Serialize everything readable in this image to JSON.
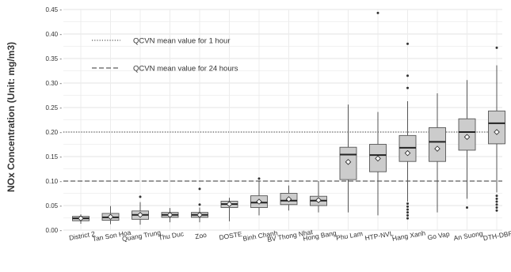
{
  "chart_data": {
    "type": "box",
    "ylabel": "NOx Concentration (Unit: mg/m3)",
    "ylim": [
      0,
      0.45
    ],
    "yticks": [
      0,
      0.05,
      0.1,
      0.15,
      0.2,
      0.25,
      0.3,
      0.35,
      0.4,
      0.45
    ],
    "ytick_labels": [
      "0.00 -",
      "0.05 -",
      "0.10 -",
      "0.15 -",
      "0.20 -",
      "0.25 -",
      "0.30 -",
      "0.35 -",
      "0.40 -",
      "0.45 -"
    ],
    "grid": true,
    "categories": [
      "District 2",
      "Tan Son Hoa",
      "Quang Trung",
      "Thu Duc",
      "Zoo",
      "DOSTE",
      "Binh Chanh",
      "BV Thong Nhat",
      "Hong Bang",
      "Phu Lam",
      "HTP-NVL",
      "Hang Xanh",
      "Go Vap",
      "An Suong",
      "DTH-DBP"
    ],
    "boxes": [
      {
        "whisker_low": 0.013,
        "q1": 0.019,
        "median": 0.024,
        "q3": 0.028,
        "whisker_high": 0.032,
        "mean": 0.024,
        "outliers": []
      },
      {
        "whisker_low": 0.012,
        "q1": 0.02,
        "median": 0.026,
        "q3": 0.034,
        "whisker_high": 0.049,
        "mean": 0.027,
        "outliers": []
      },
      {
        "whisker_low": 0.011,
        "q1": 0.022,
        "median": 0.031,
        "q3": 0.039,
        "whisker_high": 0.057,
        "mean": 0.031,
        "outliers": [
          0.068
        ]
      },
      {
        "whisker_low": 0.016,
        "q1": 0.026,
        "median": 0.031,
        "q3": 0.036,
        "whisker_high": 0.045,
        "mean": 0.031,
        "outliers": []
      },
      {
        "whisker_low": 0.016,
        "q1": 0.026,
        "median": 0.031,
        "q3": 0.036,
        "whisker_high": 0.046,
        "mean": 0.031,
        "outliers": [
          0.052,
          0.084
        ]
      },
      {
        "whisker_low": 0.018,
        "q1": 0.046,
        "median": 0.053,
        "q3": 0.059,
        "whisker_high": 0.066,
        "mean": 0.053,
        "outliers": []
      },
      {
        "whisker_low": 0.03,
        "q1": 0.046,
        "median": 0.056,
        "q3": 0.07,
        "whisker_high": 0.1,
        "mean": 0.058,
        "outliers": [
          0.105
        ]
      },
      {
        "whisker_low": 0.04,
        "q1": 0.052,
        "median": 0.06,
        "q3": 0.075,
        "whisker_high": 0.091,
        "mean": 0.063,
        "outliers": []
      },
      {
        "whisker_low": 0.036,
        "q1": 0.05,
        "median": 0.06,
        "q3": 0.069,
        "whisker_high": 0.1,
        "mean": 0.061,
        "outliers": []
      },
      {
        "whisker_low": 0.036,
        "q1": 0.103,
        "median": 0.154,
        "q3": 0.169,
        "whisker_high": 0.256,
        "mean": 0.139,
        "outliers": []
      },
      {
        "whisker_low": 0.03,
        "q1": 0.119,
        "median": 0.153,
        "q3": 0.175,
        "whisker_high": 0.241,
        "mean": 0.146,
        "outliers": [
          0.443
        ]
      },
      {
        "whisker_low": 0.058,
        "q1": 0.14,
        "median": 0.168,
        "q3": 0.193,
        "whisker_high": 0.263,
        "mean": 0.157,
        "outliers": [
          0.024,
          0.03,
          0.036,
          0.042,
          0.048,
          0.054,
          0.29,
          0.315,
          0.38
        ]
      },
      {
        "whisker_low": 0.036,
        "q1": 0.14,
        "median": 0.18,
        "q3": 0.209,
        "whisker_high": 0.279,
        "mean": 0.166,
        "outliers": []
      },
      {
        "whisker_low": 0.064,
        "q1": 0.163,
        "median": 0.2,
        "q3": 0.227,
        "whisker_high": 0.306,
        "mean": 0.19,
        "outliers": [
          0.046
        ]
      },
      {
        "whisker_low": 0.077,
        "q1": 0.176,
        "median": 0.218,
        "q3": 0.243,
        "whisker_high": 0.336,
        "mean": 0.2,
        "outliers": [
          0.04,
          0.046,
          0.052,
          0.058,
          0.064,
          0.07,
          0.372
        ]
      }
    ],
    "reference_lines": [
      {
        "value": 0.2,
        "style": "dotted",
        "label": "QCVN mean value for 1 hour"
      },
      {
        "value": 0.1,
        "style": "dashed",
        "label": "QCVN mean value for 24 hours"
      }
    ],
    "legend": {
      "placement": "top-left",
      "entries": [
        "QCVN mean value for 1 hour",
        "QCVN mean value for 24 hours"
      ]
    },
    "box_fill": "#cccccc",
    "box_stroke": "#555555"
  }
}
